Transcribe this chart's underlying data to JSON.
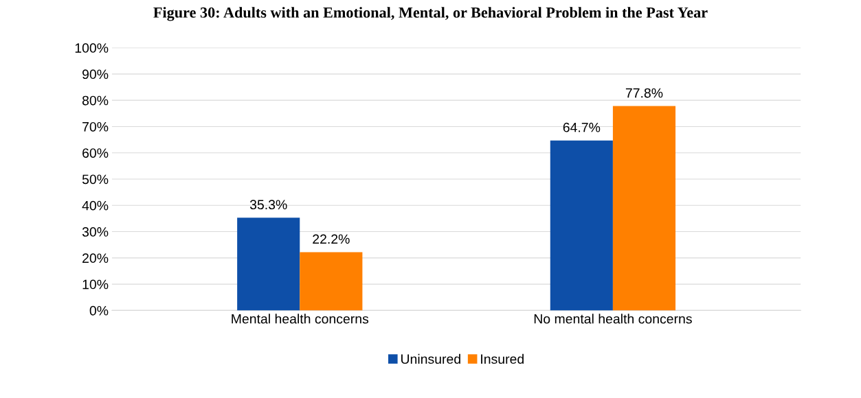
{
  "chart_data": {
    "type": "bar",
    "title": "Figure 30: Adults with an Emotional, Mental, or Behavioral Problem in the Past Year",
    "categories": [
      "Mental health concerns",
      "No mental health concerns"
    ],
    "series": [
      {
        "name": "Uninsured",
        "color": "#0e4fa8",
        "values": [
          35.3,
          64.7
        ],
        "value_labels": [
          "35.3%",
          "64.7%"
        ]
      },
      {
        "name": "Insured",
        "color": "#ff8000",
        "values": [
          22.2,
          77.8
        ],
        "value_labels": [
          "22.2%",
          "77.8%"
        ]
      }
    ],
    "ylim": [
      0,
      100
    ],
    "yticks": [
      {
        "value": 0,
        "label": "0%"
      },
      {
        "value": 10,
        "label": "10%"
      },
      {
        "value": 20,
        "label": "20%"
      },
      {
        "value": 30,
        "label": "30%"
      },
      {
        "value": 40,
        "label": "40%"
      },
      {
        "value": 50,
        "label": "50%"
      },
      {
        "value": 60,
        "label": "60%"
      },
      {
        "value": 70,
        "label": "70%"
      },
      {
        "value": 80,
        "label": "80%"
      },
      {
        "value": 90,
        "label": "90%"
      },
      {
        "value": 100,
        "label": "100%"
      }
    ],
    "grid": "y",
    "legend": "bottom"
  }
}
